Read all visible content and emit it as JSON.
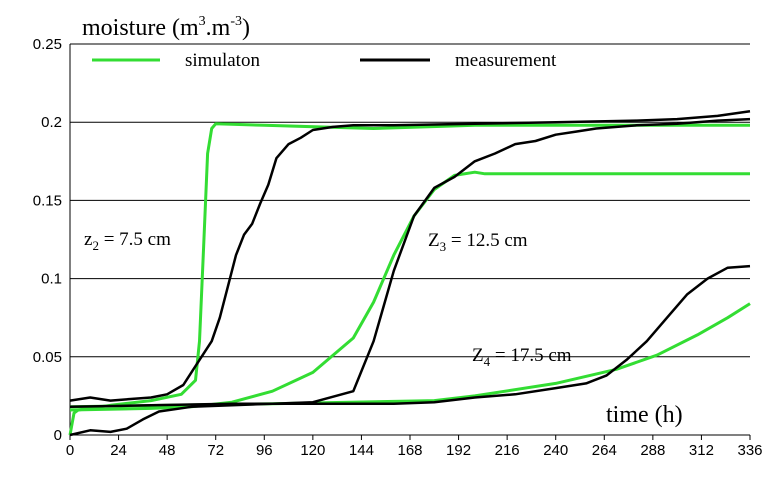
{
  "chart_data": {
    "type": "line",
    "title": "",
    "ylabel": "moisture (m",
    "ylabel_sup1": "3",
    "ylabel_dot": ".",
    "ylabel_m": "m",
    "ylabel_sup2": "-3",
    "ylabel_close": ")",
    "xlabel": "time (h)",
    "xlim": [
      0,
      336
    ],
    "ylim": [
      0,
      0.25
    ],
    "xticks": [
      0,
      24,
      48,
      72,
      96,
      120,
      144,
      168,
      192,
      216,
      240,
      264,
      288,
      312,
      336
    ],
    "yticks": [
      "0",
      "0.05",
      "0.1",
      "0.15",
      "0.2",
      "0.25"
    ],
    "ytick_values": [
      0,
      0.05,
      0.1,
      0.15,
      0.2,
      0.25
    ],
    "grid": "horizontal",
    "legend": {
      "position": "top",
      "entries": [
        {
          "label": "simulaton",
          "color": "#33dd33"
        },
        {
          "label": "measurement",
          "color": "#000000"
        }
      ]
    },
    "annotations": [
      {
        "pre": "z",
        "sub": "2",
        "post": " = 7.5 cm"
      },
      {
        "pre": "Z",
        "sub": "3",
        "post": " = 12.5 cm"
      },
      {
        "pre": "Z",
        "sub": "4",
        "post": " = 17.5 cm"
      }
    ],
    "series": [
      {
        "type": "simulation",
        "color": "#33dd33",
        "x": [
          0,
          2,
          4,
          20,
          40,
          55,
          62,
          64,
          66,
          68,
          70,
          72,
          96,
          150,
          200,
          336
        ],
        "y": [
          0.0,
          0.014,
          0.016,
          0.019,
          0.022,
          0.026,
          0.035,
          0.06,
          0.12,
          0.18,
          0.196,
          0.199,
          0.198,
          0.196,
          0.198,
          0.198
        ]
      },
      {
        "type": "simulation",
        "color": "#33dd33",
        "x": [
          0,
          40,
          60,
          80,
          100,
          120,
          140,
          150,
          160,
          170,
          180,
          190,
          200,
          205,
          336
        ],
        "y": [
          0.016,
          0.017,
          0.018,
          0.021,
          0.028,
          0.04,
          0.062,
          0.085,
          0.115,
          0.14,
          0.157,
          0.166,
          0.168,
          0.167,
          0.167
        ]
      },
      {
        "type": "simulation",
        "color": "#33dd33",
        "x": [
          0,
          100,
          180,
          200,
          240,
          270,
          290,
          310,
          325,
          336
        ],
        "y": [
          0.018,
          0.02,
          0.022,
          0.025,
          0.033,
          0.042,
          0.051,
          0.064,
          0.075,
          0.084
        ]
      },
      {
        "type": "measurement",
        "color": "#000000",
        "x": [
          0,
          10,
          20,
          30,
          40,
          48,
          56,
          60,
          64,
          70,
          74,
          78,
          82,
          86,
          90,
          94,
          98,
          102,
          108,
          114,
          120,
          130,
          140,
          160,
          200,
          240,
          280,
          300,
          320,
          336
        ],
        "y": [
          0.022,
          0.024,
          0.022,
          0.023,
          0.024,
          0.026,
          0.032,
          0.04,
          0.048,
          0.06,
          0.075,
          0.095,
          0.115,
          0.128,
          0.135,
          0.148,
          0.16,
          0.177,
          0.186,
          0.19,
          0.195,
          0.197,
          0.198,
          0.198,
          0.199,
          0.2,
          0.201,
          0.202,
          0.204,
          0.207
        ]
      },
      {
        "type": "measurement",
        "color": "#000000",
        "x": [
          0,
          10,
          20,
          28,
          36,
          44,
          60,
          80,
          100,
          120,
          140,
          150,
          160,
          170,
          180,
          190,
          200,
          210,
          220,
          230,
          240,
          250,
          260,
          280,
          300,
          320,
          336
        ],
        "y": [
          0.0,
          0.003,
          0.002,
          0.004,
          0.01,
          0.015,
          0.018,
          0.019,
          0.02,
          0.021,
          0.028,
          0.06,
          0.105,
          0.14,
          0.158,
          0.165,
          0.175,
          0.18,
          0.186,
          0.188,
          0.192,
          0.194,
          0.196,
          0.198,
          0.199,
          0.201,
          0.202
        ]
      },
      {
        "type": "measurement",
        "color": "#000000",
        "x": [
          0,
          40,
          80,
          120,
          160,
          180,
          200,
          220,
          240,
          255,
          265,
          275,
          285,
          295,
          305,
          315,
          325,
          336
        ],
        "y": [
          0.018,
          0.019,
          0.02,
          0.02,
          0.02,
          0.021,
          0.024,
          0.026,
          0.03,
          0.033,
          0.038,
          0.048,
          0.06,
          0.075,
          0.09,
          0.1,
          0.107,
          0.108
        ]
      }
    ]
  }
}
